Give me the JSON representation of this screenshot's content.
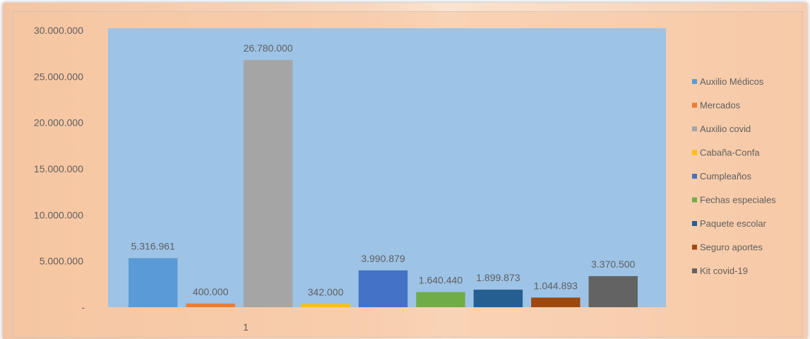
{
  "chart_data": {
    "type": "bar",
    "categories": [
      "1"
    ],
    "series": [
      {
        "name": "Auxilio Médicos",
        "value": 5316961,
        "label": "5.316.961",
        "color": "#5b9bd5"
      },
      {
        "name": "Mercados",
        "value": 400000,
        "label": "400.000",
        "color": "#ed7d31"
      },
      {
        "name": "Auxilio covid",
        "value": 26780000,
        "label": "26.780.000",
        "color": "#a5a5a5"
      },
      {
        "name": "Cabaña-Confa",
        "value": 342000,
        "label": "342.000",
        "color": "#ffc000"
      },
      {
        "name": "Cumpleaños",
        "value": 3990879,
        "label": "3.990.879",
        "color": "#4472c4"
      },
      {
        "name": "Fechas especiales",
        "value": 1640440,
        "label": "1.640.440",
        "color": "#70ad47"
      },
      {
        "name": "Paquete escolar",
        "value": 1899873,
        "label": "1.899.873",
        "color": "#255e91"
      },
      {
        "name": "Seguro aportes",
        "value": 1044893,
        "label": "1.044.893",
        "color": "#9e480e"
      },
      {
        "name": "Kit covid-19",
        "value": 3370500,
        "label": "3.370.500",
        "color": "#636363"
      }
    ],
    "ylim": [
      0,
      30000000
    ],
    "yticks": [
      {
        "value": 0,
        "label": "-"
      },
      {
        "value": 5000000,
        "label": "5.000.000"
      },
      {
        "value": 10000000,
        "label": "10.000.000"
      },
      {
        "value": 15000000,
        "label": "15.000.000"
      },
      {
        "value": 20000000,
        "label": "20.000.000"
      },
      {
        "value": 25000000,
        "label": "25.000.000"
      },
      {
        "value": 30000000,
        "label": "30.000.000"
      }
    ],
    "plot_background": "#9dc3e6",
    "legend_position": "right",
    "grid": false
  }
}
